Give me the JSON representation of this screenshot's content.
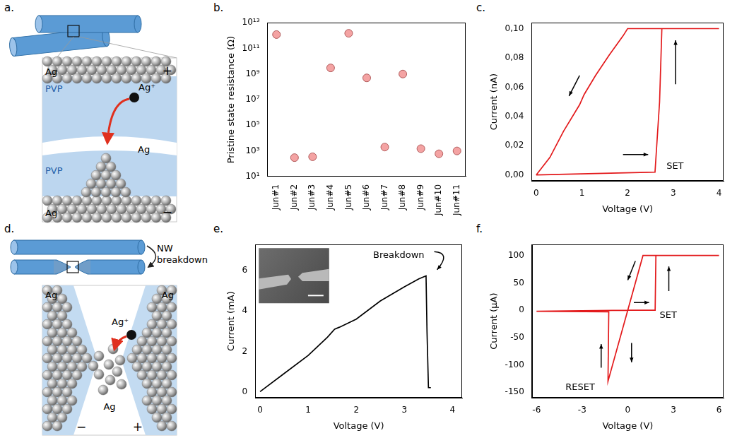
{
  "chart_data": [
    {
      "panel_label": "b.",
      "type": "scatter",
      "y_label": "Pristine state resistance (Ω)",
      "categories": [
        "Jun#1",
        "Jun#2",
        "Jun#3",
        "Jun#4",
        "Jun#5",
        "Jun#6",
        "Jun#7",
        "Jun#8",
        "Jun#9",
        "Jun#10",
        "Jun#11"
      ],
      "values": [
        1200000000000.0,
        300,
        350,
        3000000000.0,
        1500000000000.0,
        500000000.0,
        2000,
        1000000000.0,
        1500,
        600,
        1000
      ],
      "color": "#f4a3a3",
      "marker": "circle",
      "log": "y",
      "ylim": [
        10,
        10000000000000.0
      ],
      "yticks": [
        {
          "value": 10,
          "label": "10¹"
        },
        {
          "value": 1000,
          "label": "10³"
        },
        {
          "value": 100000,
          "label": "10⁵"
        },
        {
          "value": 10000000,
          "label": "10⁷"
        },
        {
          "value": 1000000000,
          "label": "10⁹"
        },
        {
          "value": 100000000000,
          "label": "10¹¹"
        },
        {
          "value": 10000000000000,
          "label": "10¹³"
        }
      ],
      "grid": false
    },
    {
      "panel_label": "c.",
      "type": "line",
      "x_label": "Voltage (V)",
      "y_label": "Current (nA)",
      "x": [
        0,
        2.6,
        2.7,
        2.75,
        4,
        2.0,
        1.9,
        1.6,
        1.3,
        1.05,
        0.95,
        0.6,
        0.3,
        0
      ],
      "values": [
        0,
        0.002,
        0.05,
        0.1,
        0.1,
        0.1,
        0.095,
        0.082,
        0.068,
        0.055,
        0.048,
        0.03,
        0.012,
        0
      ],
      "color": "#e31a1c",
      "line_style": "solid",
      "xlim": [
        -0.1,
        4.1
      ],
      "xticks": [
        0,
        1,
        2,
        3,
        4
      ],
      "ylim": [
        -0.004,
        0.104
      ],
      "yticks": [
        {
          "value": 0,
          "label": "0,00"
        },
        {
          "value": 0.02,
          "label": "0,02"
        },
        {
          "value": 0.04,
          "label": "0,04"
        },
        {
          "value": 0.06,
          "label": "0,06"
        },
        {
          "value": 0.08,
          "label": "0,08"
        },
        {
          "value": 0.1,
          "label": "0,10"
        }
      ],
      "grid": false,
      "annotations": [
        {
          "text": "SET",
          "x": 2.85,
          "y": 0.006
        }
      ]
    },
    {
      "panel_label": "e.",
      "type": "line",
      "x_label": "Voltage (V)",
      "y_label": "Current (mA)",
      "x": [
        0,
        0.5,
        1.0,
        1.4,
        1.55,
        1.65,
        2.0,
        2.5,
        3.0,
        3.3,
        3.45,
        3.47,
        3.5,
        3.55
      ],
      "values": [
        0,
        0.9,
        1.8,
        2.7,
        3.1,
        3.2,
        3.6,
        4.5,
        5.2,
        5.6,
        5.75,
        3.0,
        0.2,
        0.2
      ],
      "color": "#000000",
      "line_style": "solid",
      "xlim": [
        -0.1,
        4.2
      ],
      "xticks": [
        0,
        1,
        2,
        3,
        4
      ],
      "ylim": [
        -0.3,
        7.3
      ],
      "yticks": [
        0,
        2,
        4,
        6
      ],
      "grid": false,
      "annotations": [
        {
          "text": "Breakdown",
          "x": 2.35,
          "y": 6.75
        }
      ]
    },
    {
      "panel_label": "f.",
      "type": "line",
      "x_label": "Voltage (V)",
      "y_label": "Current (μA)",
      "x": [
        0,
        1.8,
        1.85,
        6,
        1.0,
        -1.3,
        -1.25,
        -6,
        0
      ],
      "values": [
        0,
        0,
        100,
        100,
        100,
        -130,
        -3,
        -2,
        0
      ],
      "color": "#e31a1c",
      "line_style": "solid",
      "xlim": [
        -6.3,
        6.3
      ],
      "xticks": [
        -6,
        -3,
        0,
        3,
        6
      ],
      "ylim": [
        -160,
        120
      ],
      "yticks": [
        -150,
        -100,
        -50,
        0,
        50,
        100
      ],
      "grid": false,
      "annotations": [
        {
          "text": "SET",
          "x": 2.1,
          "y": -10
        },
        {
          "text": "RESET",
          "x": -4.1,
          "y": -142
        }
      ]
    }
  ],
  "diagrams": [
    {
      "panel_label": "a.",
      "labels": {
        "top_electrode": "Ag",
        "upper_layer": "PVP",
        "ion": "Ag⁺",
        "lower_layer": "PVP",
        "filament": "Ag",
        "bottom_electrode": "Ag",
        "top_polarity": "+",
        "bottom_polarity": "−"
      }
    },
    {
      "panel_label": "d.",
      "caption": "NW breakdown",
      "labels": {
        "left_electrode": "Ag",
        "right_electrode": "Ag",
        "gap": "Ag",
        "ion": "Ag⁺",
        "left_polarity": "−",
        "right_polarity": "+"
      }
    }
  ]
}
